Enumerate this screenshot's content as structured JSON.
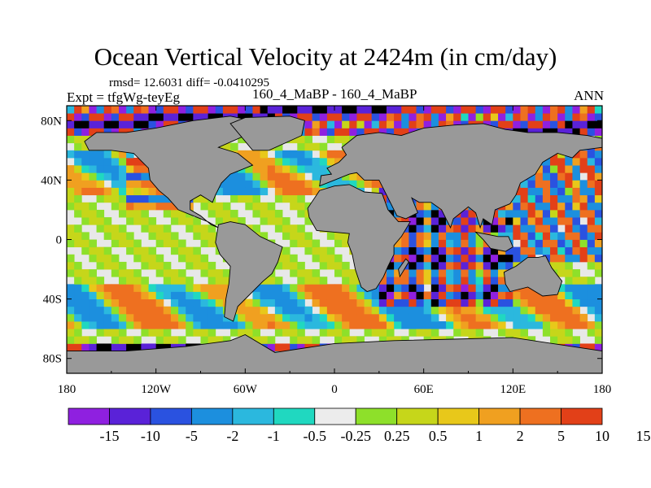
{
  "title": "Ocean Vertical Velocity at 2424m (in cm/day)",
  "stats": "rmsd= 12.6031 diff= -0.0410295",
  "experiment": "Expt = tfgWg-teyEg",
  "cases": "160_4_MaBP - 160_4_MaBP",
  "season": "ANN",
  "colors": {
    "land": "#999999",
    "missing": "#e8e8e8",
    "palette": [
      "#8f20e0",
      "#5a22d8",
      "#2a52e0",
      "#1c8fde",
      "#2bb8de",
      "#20d8c0",
      "#ececec",
      "#8ee02a",
      "#c6d61a",
      "#e8c81a",
      "#f0a020",
      "#ee7020",
      "#e24018"
    ]
  },
  "chart_data": {
    "type": "heatmap",
    "variable": "Ocean vertical velocity difference",
    "units": "cm/day",
    "x": {
      "range": [
        -180,
        180
      ],
      "ticks": [
        -180,
        -120,
        -60,
        0,
        60,
        120,
        180
      ],
      "tick_labels": [
        "180",
        "120W",
        "60W",
        "0",
        "60E",
        "120E",
        "180"
      ]
    },
    "y": {
      "range": [
        -90,
        90
      ],
      "ticks": [
        -80,
        -40,
        0,
        40,
        80
      ],
      "tick_labels": [
        "80S",
        "40S",
        "0",
        "40N",
        "80N"
      ]
    },
    "colorbar": {
      "levels": [
        -15,
        -10,
        -5,
        -2,
        -1,
        -0.5,
        -0.25,
        0.25,
        0.5,
        1,
        2,
        5,
        10,
        15
      ],
      "labels": [
        "-15",
        "-10",
        "-5",
        "-2",
        "-1",
        "-0.5",
        "-0.25",
        "0.25",
        "0.5",
        "1",
        "2",
        "5",
        "10",
        "15"
      ]
    }
  }
}
